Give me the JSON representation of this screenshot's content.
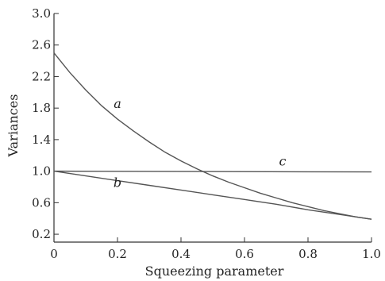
{
  "chart_data": {
    "type": "line",
    "xlabel": "Squeezing parameter",
    "ylabel": "Variances",
    "xlim": [
      0,
      1.0
    ],
    "ylim": [
      0.1,
      3.0
    ],
    "x_ticks": [
      0,
      0.2,
      0.4,
      0.6,
      0.8,
      1.0
    ],
    "x_tick_labels": [
      "0",
      "0.2",
      "0.4",
      "0.6",
      "0.8",
      "1.0"
    ],
    "y_ticks": [
      0.2,
      0.6,
      1.0,
      1.4,
      1.8,
      2.2,
      2.6,
      3.0
    ],
    "y_tick_labels": [
      "0.2",
      "0.6",
      "1.0",
      "1.4",
      "1.8",
      "2.2",
      "2.6",
      "3.0"
    ],
    "grid": false,
    "series": [
      {
        "name": "a",
        "x": [
          0,
          0.05,
          0.1,
          0.15,
          0.2,
          0.25,
          0.3,
          0.35,
          0.4,
          0.45,
          0.5,
          0.55,
          0.6,
          0.65,
          0.7,
          0.75,
          0.8,
          0.85,
          0.9,
          0.95,
          1.0
        ],
        "y": [
          2.5,
          2.25,
          2.03,
          1.83,
          1.66,
          1.51,
          1.37,
          1.24,
          1.13,
          1.03,
          0.94,
          0.86,
          0.79,
          0.72,
          0.66,
          0.6,
          0.55,
          0.5,
          0.46,
          0.42,
          0.39
        ]
      },
      {
        "name": "b",
        "x": [
          0,
          0.1,
          0.2,
          0.3,
          0.4,
          0.5,
          0.6,
          0.7,
          0.8,
          0.9,
          1.0
        ],
        "y": [
          1.0,
          0.94,
          0.88,
          0.82,
          0.76,
          0.7,
          0.64,
          0.58,
          0.51,
          0.45,
          0.39
        ]
      },
      {
        "name": "c",
        "x": [
          0,
          1.0
        ],
        "y": [
          1.0,
          0.99
        ]
      }
    ],
    "curve_labels": [
      {
        "text": "a",
        "x": 0.2,
        "y": 1.8
      },
      {
        "text": "b",
        "x": 0.2,
        "y": 0.8
      },
      {
        "text": "c",
        "x": 0.72,
        "y": 1.07
      }
    ]
  }
}
